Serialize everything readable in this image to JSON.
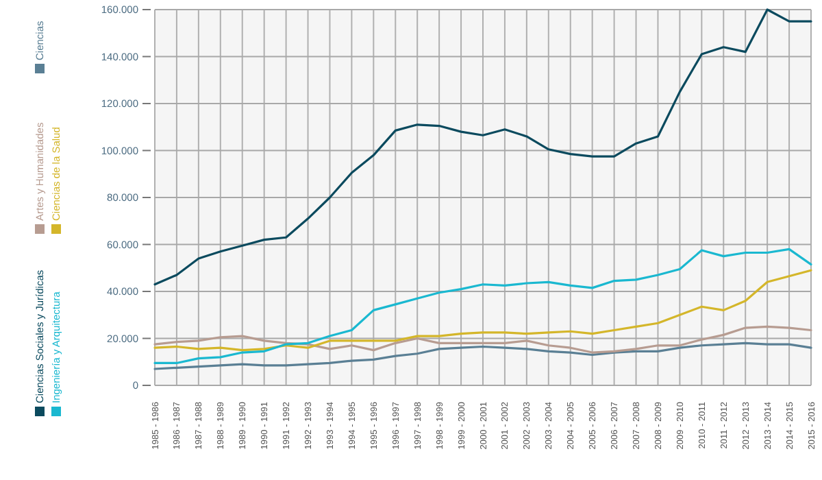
{
  "chart_data": {
    "type": "line",
    "categories": [
      "1985 - 1986",
      "1986 - 1987",
      "1987 - 1988",
      "1988 - 1989",
      "1989 - 1990",
      "1990 - 1991",
      "1991 - 1992",
      "1992 - 1993",
      "1993 - 1994",
      "1994 - 1995",
      "1995 - 1996",
      "1996 - 1997",
      "1997 - 1998",
      "1998 - 1999",
      "1999 - 2000",
      "2000 - 2001",
      "2001 - 2002",
      "2002 - 2003",
      "2003 - 2004",
      "2004 - 2005",
      "2005 - 2006",
      "2006 - 2007",
      "2007 - 2008",
      "2008 - 2009",
      "2009 - 2010",
      "2010 - 2011",
      "2011 - 2012",
      "2012 - 2013",
      "2013 - 2014",
      "2014 - 2015",
      "2015 - 2016"
    ],
    "series": [
      {
        "name": "Ciencias",
        "color": "#5a7f94",
        "values": [
          7000,
          7500,
          8000,
          8500,
          9000,
          8500,
          8500,
          9000,
          9500,
          10500,
          11000,
          12500,
          13500,
          15500,
          16000,
          16500,
          16000,
          15500,
          14500,
          14000,
          13000,
          14000,
          14500,
          14500,
          16000,
          17000,
          17500,
          18000,
          17500,
          17500,
          16000
        ]
      },
      {
        "name": "Artes y Humanidades",
        "color": "#b79c91",
        "values": [
          17500,
          18500,
          19000,
          20500,
          21000,
          19000,
          18000,
          17500,
          15500,
          17000,
          15000,
          18000,
          20000,
          18000,
          18000,
          18000,
          18000,
          19000,
          17000,
          16000,
          14000,
          14500,
          15500,
          17000,
          17000,
          19500,
          21500,
          24500,
          25000,
          24500,
          23500
        ]
      },
      {
        "name": "Ciencias de la Salud",
        "color": "#d4b62a",
        "values": [
          16000,
          16500,
          15500,
          16000,
          15000,
          15500,
          17000,
          16000,
          19000,
          19000,
          19000,
          19000,
          21000,
          21000,
          22000,
          22500,
          22500,
          22000,
          22500,
          23000,
          22000,
          23500,
          25000,
          26500,
          30000,
          33500,
          32000,
          36000,
          44000,
          46500,
          49000
        ]
      },
      {
        "name": "Ciencias Sociales y Jurídicas",
        "color": "#0b4a5e",
        "values": [
          43000,
          47000,
          54000,
          57000,
          59500,
          62000,
          63000,
          71000,
          80000,
          90500,
          98000,
          108500,
          111000,
          110500,
          108000,
          106500,
          109000,
          106000,
          100500,
          98500,
          97500,
          97500,
          103000,
          106000,
          125000,
          141000,
          144000,
          142000,
          160000,
          155000,
          155000
        ]
      },
      {
        "name": "Ingeniería y Arquitectura",
        "color": "#1ab8d0",
        "values": [
          9500,
          9500,
          11500,
          12000,
          14000,
          14500,
          17500,
          18000,
          21000,
          23500,
          32000,
          34500,
          37000,
          39500,
          41000,
          43000,
          42500,
          43500,
          44000,
          42500,
          41500,
          44500,
          45000,
          47000,
          49500,
          57500,
          55000,
          56500,
          56500,
          58000,
          51500
        ]
      }
    ],
    "ylim": [
      0,
      160000
    ],
    "yticks": [
      0,
      {
        "value": 20000,
        "label": "20.000"
      },
      {
        "value": 40000,
        "label": "40.000"
      },
      {
        "value": 60000,
        "label": "60.000"
      },
      {
        "value": 80000,
        "label": "80.000"
      },
      {
        "value": 100000,
        "label": "100.000"
      },
      {
        "value": 120000,
        "label": "120.000"
      },
      {
        "value": 140000,
        "label": "140.000"
      },
      {
        "value": 160000,
        "label": "160.000"
      }
    ],
    "grid": true,
    "legend": "left"
  }
}
